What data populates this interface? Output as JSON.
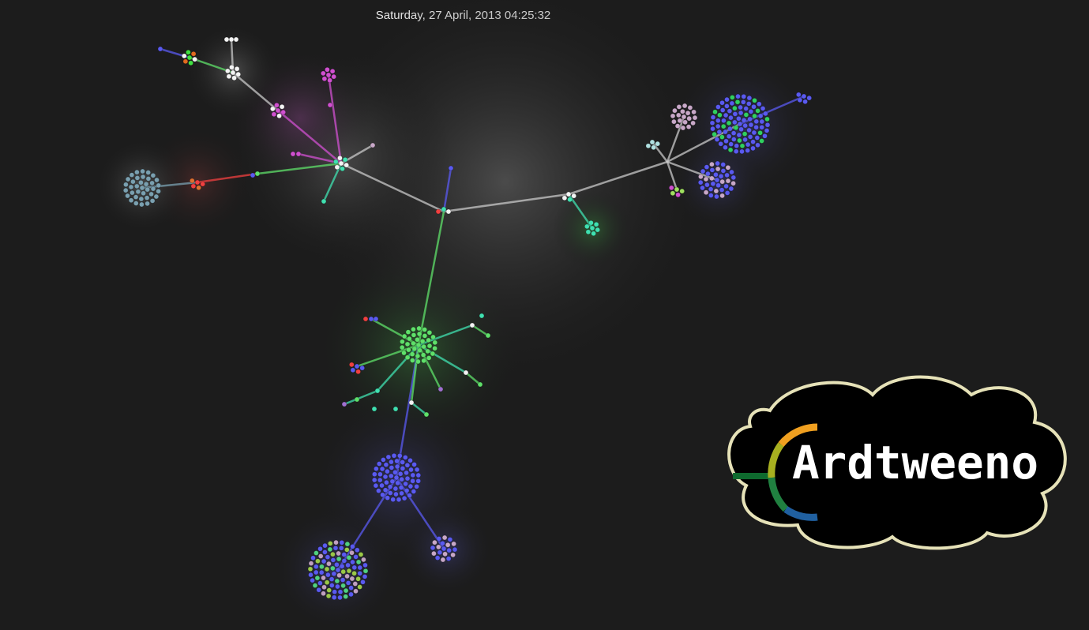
{
  "timestamp": "Saturday, 27 April, 2013 04:25:32",
  "logo": {
    "text": "Ardtweeno",
    "cloud_fill": "#000000",
    "cloud_stroke": "#e6e2b8",
    "ring_colors": [
      "#f0a020",
      "#a8b020",
      "#208040",
      "#2060a0",
      "#8030a0"
    ],
    "stem_color": "#0e6a2e"
  },
  "background_color": "#1c1c1c",
  "palette": {
    "link_main": "#c8c8c8",
    "green": "#5fe06a",
    "blue": "#5a5af0",
    "pink": "#d050d0",
    "teal": "#40e0b0",
    "white": "#f4f4f4",
    "steel": "#7aa0b0",
    "lavender": "#c8a8c8",
    "red": "#f04040"
  }
}
